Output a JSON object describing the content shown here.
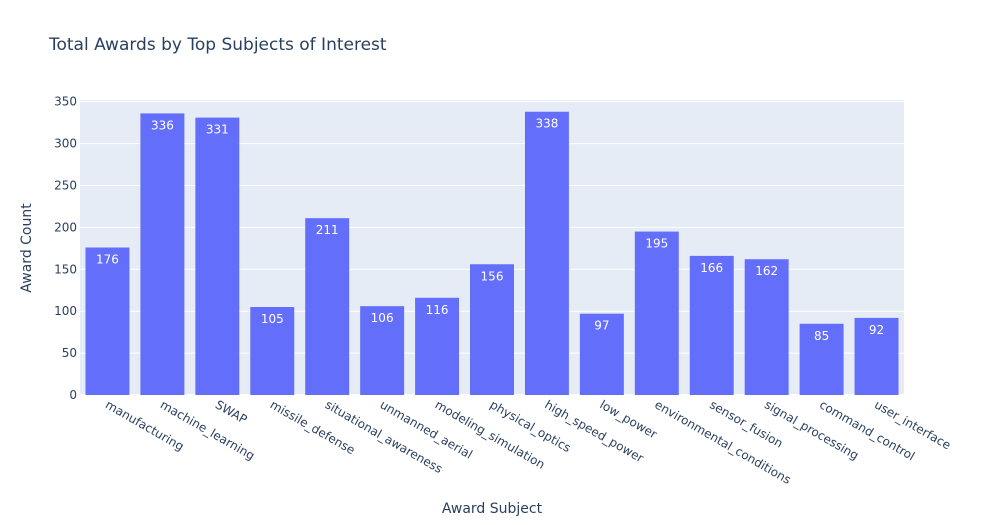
{
  "colors": {
    "plot_background": "#e5ecf6",
    "gridline": "#ffffff",
    "bar": "#636efa",
    "text": "#2a3f5f",
    "data_label": "#ffffff"
  },
  "chart_data": {
    "type": "bar",
    "title": "Total Awards by Top Subjects of Interest",
    "xlabel": "Award Subject",
    "ylabel": "Award Count",
    "ylim": [
      0,
      352
    ],
    "yticks": [
      0,
      50,
      100,
      150,
      200,
      250,
      300,
      350
    ],
    "grid": true,
    "legend": "none",
    "categories": [
      "manufacturing",
      "machine_learning",
      "SWAP",
      "missile_defense",
      "situational_awareness",
      "unmanned_aerial",
      "modeling_simulation",
      "physical_optics",
      "high_speed_power",
      "low_power",
      "environmental_conditions",
      "sensor_fusion",
      "signal_processing",
      "command_control",
      "user_interface"
    ],
    "values": [
      176,
      336,
      331,
      105,
      211,
      106,
      116,
      156,
      338,
      97,
      195,
      166,
      162,
      85,
      92
    ]
  }
}
